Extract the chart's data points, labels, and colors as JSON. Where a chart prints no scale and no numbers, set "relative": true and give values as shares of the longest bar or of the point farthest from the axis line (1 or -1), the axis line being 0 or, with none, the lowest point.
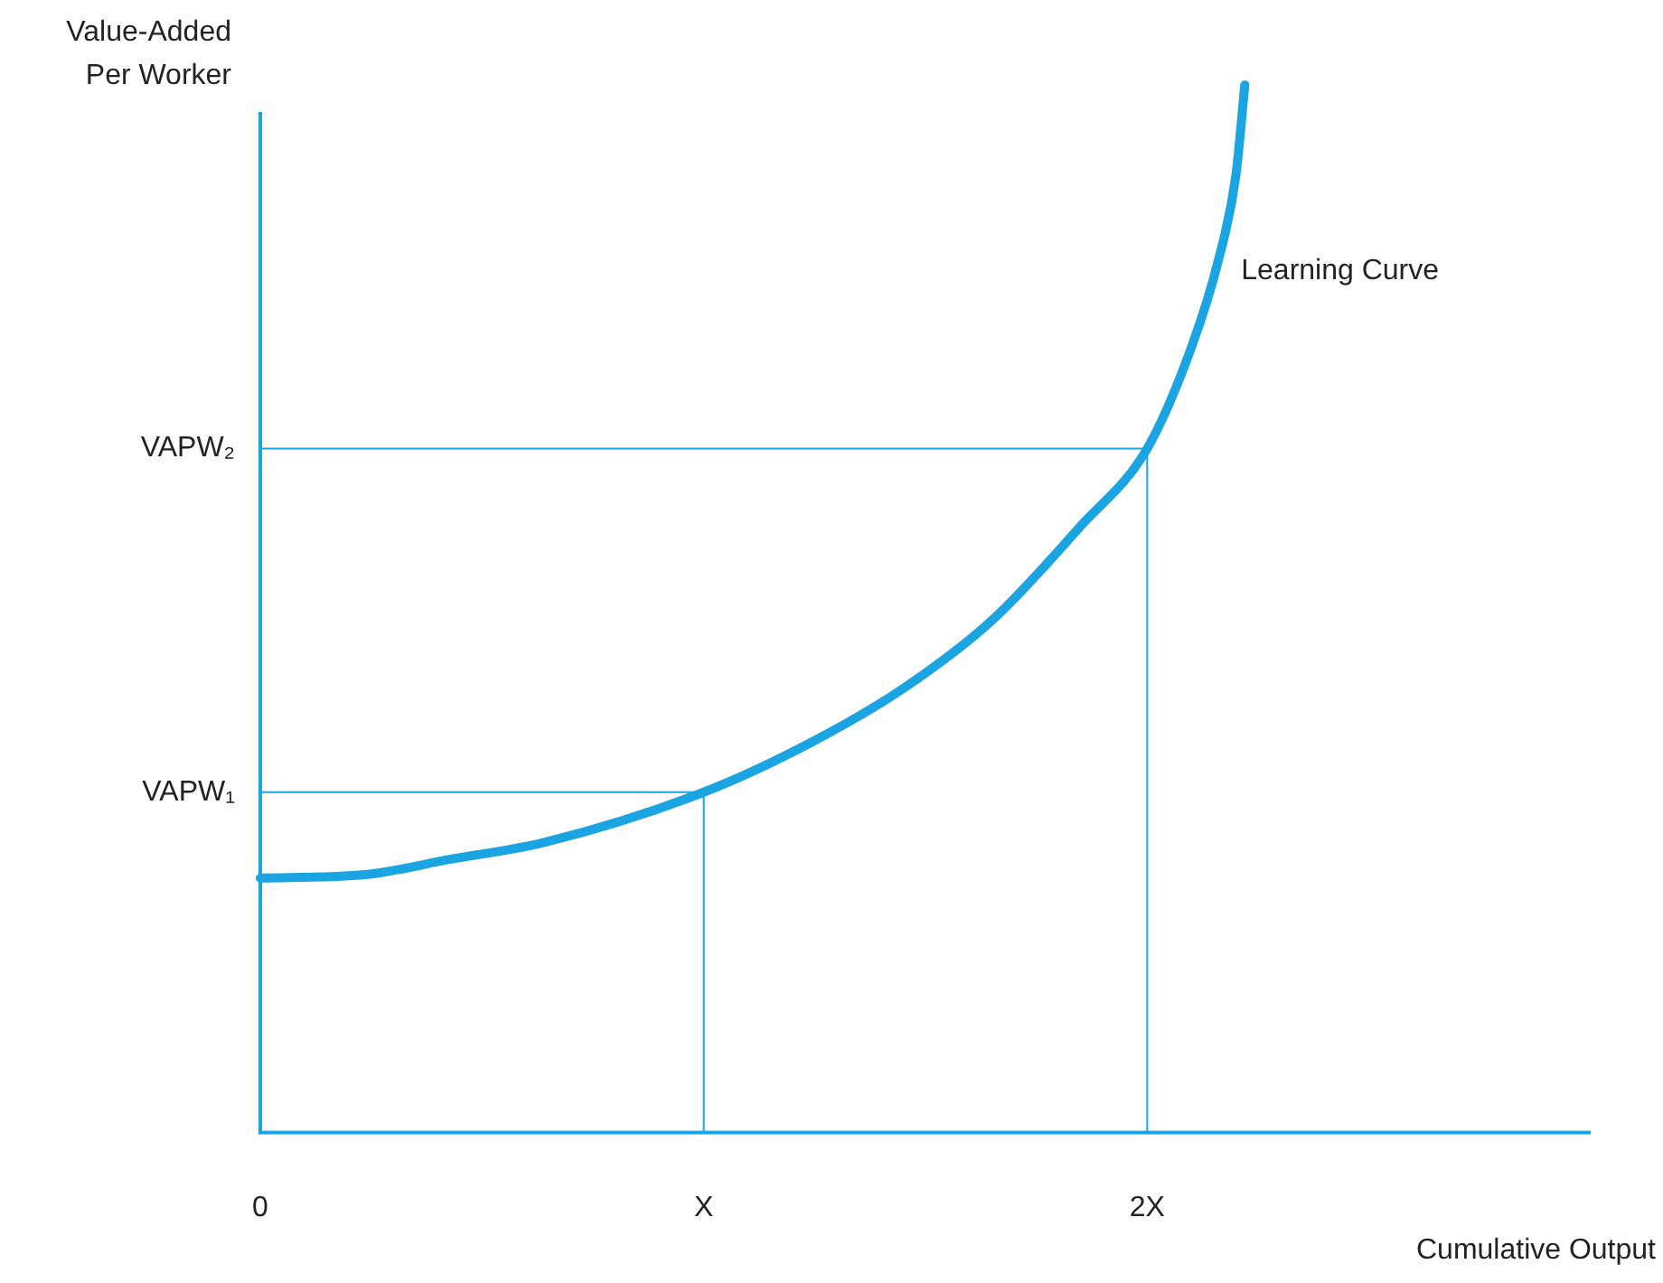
{
  "chart_data": {
    "type": "line",
    "relative": true,
    "xlabel": "Cumulative Output",
    "ylabel": "Value-Added\nPer Worker",
    "x": [
      0,
      0.23,
      0.43,
      0.64,
      1,
      1.24,
      1.45,
      1.65,
      1.85,
      2,
      2.1,
      2.16,
      2.2,
      2.22
    ],
    "series": [
      {
        "color": "#1ba4e2",
        "values": [
          0.243,
          0.246,
          0.261,
          0.277,
          0.325,
          0.372,
          0.424,
          0.489,
          0.579,
          0.653,
          0.75,
          0.832,
          0.914,
          1
        ]
      }
    ],
    "xlim": [
      0,
      3
    ],
    "xticks": [
      {
        "value": 0,
        "label": "0"
      },
      {
        "value": 1,
        "label": "X"
      },
      {
        "value": 2,
        "label": "2X"
      }
    ],
    "ref_lines": [
      {
        "axis": "y",
        "value": 0.325,
        "label": "VAPW₁",
        "color": "#1ba4e2"
      },
      {
        "axis": "y",
        "value": 0.653,
        "label": "VAPW₂",
        "color": "#1ba4e2"
      },
      {
        "axis": "x",
        "value": 1,
        "color": "#1ba4e2"
      },
      {
        "axis": "x",
        "value": 2,
        "color": "#1ba4e2"
      }
    ],
    "annotations": [
      "Learning Curve"
    ],
    "grid": false,
    "legend": false,
    "marker": "none",
    "line_style": "solid"
  }
}
